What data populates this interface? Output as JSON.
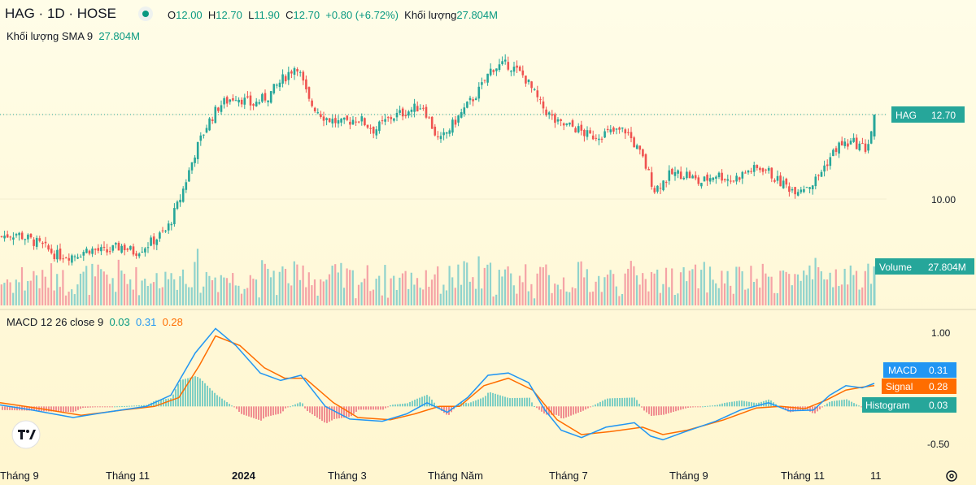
{
  "header": {
    "symbol": "HAG · 1D · HOSE",
    "o_label": "O",
    "o_value": "12.00",
    "h_label": "H",
    "h_value": "12.70",
    "l_label": "L",
    "l_value": "11.90",
    "c_label": "C",
    "c_value": "12.70",
    "change": "+0.80 (+6.72%)",
    "volume_label": "Khối lượng",
    "volume_value": "27.804M",
    "sma_label": "Khối lượng SMA 9",
    "sma_value": "27.804M",
    "macd_title": "MACD 12 26 close 9",
    "macd_hist_value": "0.03",
    "macd_value": "0.31",
    "macd_signal_value": "0.28"
  },
  "price_scale": {
    "label_10": "10.00"
  },
  "badges": {
    "hag_label": "HAG",
    "hag_value": "12.70",
    "volume_label": "Volume",
    "volume_value": "27.804M",
    "macd_label": "MACD",
    "macd_value": "0.31",
    "signal_label": "Signal",
    "signal_value": "0.28",
    "hist_label": "Histogram",
    "hist_value": "0.03"
  },
  "macd_scale": {
    "top": "1.00",
    "bottom": "-0.50"
  },
  "x_axis": [
    "Tháng 9",
    "Tháng 11",
    "2024",
    "Tháng 3",
    "Tháng Năm",
    "Tháng 7",
    "Tháng 9",
    "Tháng 11",
    "11"
  ],
  "colors": {
    "up": "#26a69a",
    "down": "#ef5350",
    "macd": "#2196f3",
    "signal": "#ff6d00",
    "hist_up": "#26a69a",
    "hist_down": "#ef5350",
    "bg_top": "#fffde7",
    "bg_bottom": "#fff8d6"
  },
  "chart_data": {
    "type": "candlestick",
    "price_series": {
      "anchors": [
        [
          0,
          8.8
        ],
        [
          20,
          8.9
        ],
        [
          45,
          8.6
        ],
        [
          70,
          8.2
        ],
        [
          90,
          8.2
        ],
        [
          110,
          8.4
        ],
        [
          130,
          8.3
        ],
        [
          150,
          8.5
        ],
        [
          165,
          8.3
        ],
        [
          185,
          8.6
        ],
        [
          205,
          9.0
        ],
        [
          220,
          9.9
        ],
        [
          240,
          11.5
        ],
        [
          255,
          12.4
        ],
        [
          270,
          13.0
        ],
        [
          290,
          13.3
        ],
        [
          310,
          13.0
        ],
        [
          330,
          13.3
        ],
        [
          350,
          13.9
        ],
        [
          365,
          14.3
        ],
        [
          380,
          13.1
        ],
        [
          400,
          12.6
        ],
        [
          420,
          12.4
        ],
        [
          440,
          12.6
        ],
        [
          460,
          12.2
        ],
        [
          480,
          12.6
        ],
        [
          500,
          12.8
        ],
        [
          520,
          13.0
        ],
        [
          540,
          11.8
        ],
        [
          560,
          12.5
        ],
        [
          575,
          13.0
        ],
        [
          590,
          13.5
        ],
        [
          605,
          14.2
        ],
        [
          625,
          14.3
        ],
        [
          645,
          13.9
        ],
        [
          665,
          13.0
        ],
        [
          685,
          12.4
        ],
        [
          705,
          12.3
        ],
        [
          725,
          12.0
        ],
        [
          745,
          12.1
        ],
        [
          770,
          12.2
        ],
        [
          790,
          11.3
        ],
        [
          805,
          10.3
        ],
        [
          825,
          10.8
        ],
        [
          845,
          10.8
        ],
        [
          860,
          10.5
        ],
        [
          880,
          10.8
        ],
        [
          900,
          10.6
        ],
        [
          920,
          10.9
        ],
        [
          940,
          11.0
        ],
        [
          955,
          10.6
        ],
        [
          975,
          10.3
        ],
        [
          1000,
          10.5
        ],
        [
          1015,
          11.1
        ],
        [
          1030,
          11.7
        ],
        [
          1050,
          11.8
        ],
        [
          1065,
          11.6
        ],
        [
          1070,
          12.0
        ],
        [
          1075,
          12.7
        ]
      ],
      "last": {
        "open": 12.0,
        "high": 12.7,
        "low": 11.9,
        "close": 12.7
      }
    },
    "volume_last": "27.804M",
    "macd_series": {
      "macd_anchors": [
        [
          0,
          0.02
        ],
        [
          40,
          -0.05
        ],
        [
          90,
          -0.15
        ],
        [
          130,
          -0.08
        ],
        [
          180,
          0.0
        ],
        [
          210,
          0.15
        ],
        [
          240,
          0.72
        ],
        [
          265,
          1.05
        ],
        [
          290,
          0.82
        ],
        [
          320,
          0.45
        ],
        [
          345,
          0.35
        ],
        [
          370,
          0.42
        ],
        [
          400,
          0.0
        ],
        [
          430,
          -0.17
        ],
        [
          470,
          -0.2
        ],
        [
          500,
          -0.1
        ],
        [
          525,
          0.05
        ],
        [
          550,
          -0.08
        ],
        [
          575,
          0.12
        ],
        [
          600,
          0.42
        ],
        [
          625,
          0.45
        ],
        [
          650,
          0.32
        ],
        [
          670,
          -0.05
        ],
        [
          690,
          -0.32
        ],
        [
          715,
          -0.42
        ],
        [
          745,
          -0.28
        ],
        [
          780,
          -0.22
        ],
        [
          800,
          -0.4
        ],
        [
          815,
          -0.45
        ],
        [
          840,
          -0.35
        ],
        [
          880,
          -0.2
        ],
        [
          910,
          -0.05
        ],
        [
          945,
          0.05
        ],
        [
          970,
          -0.06
        ],
        [
          1000,
          -0.05
        ],
        [
          1020,
          0.15
        ],
        [
          1040,
          0.28
        ],
        [
          1060,
          0.25
        ],
        [
          1075,
          0.31
        ]
      ],
      "signal_anchors": [
        [
          0,
          0.05
        ],
        [
          50,
          -0.03
        ],
        [
          100,
          -0.12
        ],
        [
          150,
          -0.05
        ],
        [
          190,
          0.0
        ],
        [
          220,
          0.12
        ],
        [
          245,
          0.55
        ],
        [
          265,
          0.95
        ],
        [
          295,
          0.82
        ],
        [
          325,
          0.52
        ],
        [
          350,
          0.38
        ],
        [
          375,
          0.38
        ],
        [
          410,
          0.05
        ],
        [
          440,
          -0.15
        ],
        [
          480,
          -0.18
        ],
        [
          510,
          -0.1
        ],
        [
          540,
          0.0
        ],
        [
          565,
          0.0
        ],
        [
          595,
          0.28
        ],
        [
          625,
          0.38
        ],
        [
          655,
          0.22
        ],
        [
          685,
          -0.18
        ],
        [
          715,
          -0.38
        ],
        [
          750,
          -0.34
        ],
        [
          790,
          -0.28
        ],
        [
          815,
          -0.38
        ],
        [
          845,
          -0.32
        ],
        [
          890,
          -0.18
        ],
        [
          930,
          -0.02
        ],
        [
          960,
          0.0
        ],
        [
          990,
          -0.03
        ],
        [
          1015,
          0.08
        ],
        [
          1040,
          0.22
        ],
        [
          1060,
          0.26
        ],
        [
          1075,
          0.28
        ]
      ],
      "last": {
        "macd": 0.31,
        "signal": 0.28,
        "histogram": 0.03
      }
    },
    "y_ticks_price": [
      10.0
    ],
    "y_ticks_macd": [
      1.0,
      -0.5
    ],
    "x_labels": [
      "Tháng 9",
      "Tháng 11",
      "2024",
      "Tháng 3",
      "Tháng Năm",
      "Tháng 7",
      "Tháng 9",
      "Tháng 11",
      "11"
    ]
  }
}
